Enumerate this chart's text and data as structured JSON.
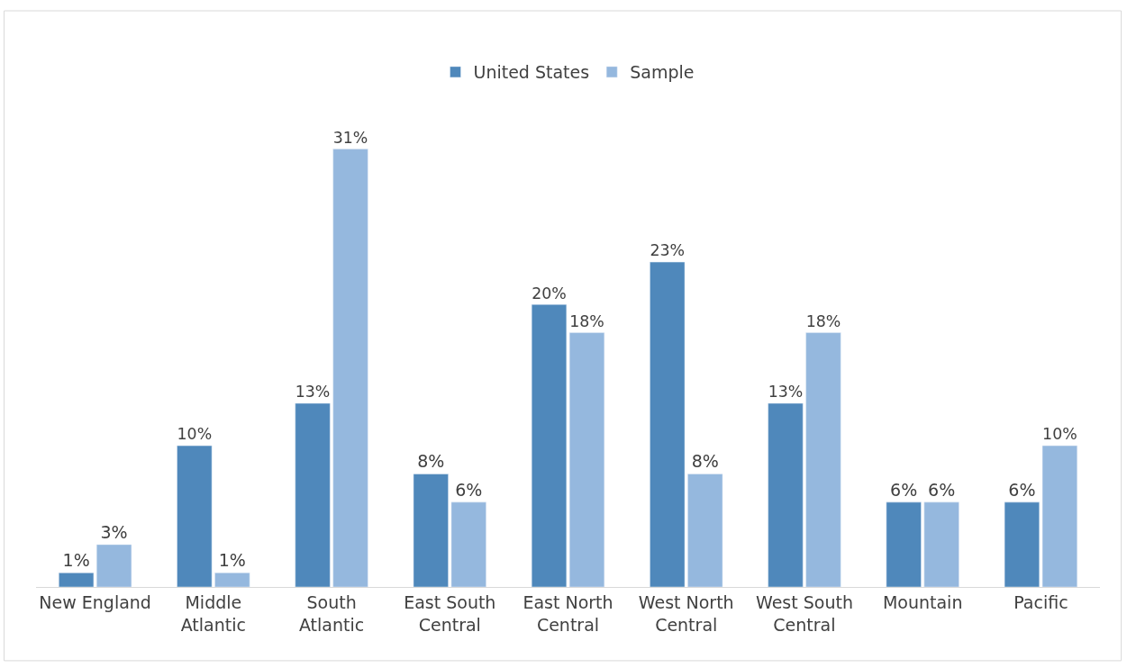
{
  "chart_data": {
    "type": "bar",
    "categories": [
      "New England",
      "Middle\nAtlantic",
      "South\nAtlantic",
      "East South\nCentral",
      "East North\nCentral",
      "West North\nCentral",
      "West South\nCentral",
      "Mountain",
      "Pacific"
    ],
    "series": [
      {
        "name": "United States",
        "color": "#4f88bb",
        "values": [
          1,
          10,
          13,
          8,
          20,
          23,
          13,
          6,
          6
        ],
        "value_labels": [
          "1%",
          "10%",
          "13%",
          "8%",
          "20%",
          "23%",
          "13%",
          "6%",
          "6%"
        ]
      },
      {
        "name": "Sample",
        "color": "#95b8de",
        "values": [
          3,
          1,
          31,
          6,
          18,
          8,
          18,
          6,
          10
        ],
        "value_labels": [
          "3%",
          "1%",
          "31%",
          "6%",
          "18%",
          "8%",
          "18%",
          "6%",
          "10%"
        ]
      }
    ],
    "legend": "top"
  }
}
